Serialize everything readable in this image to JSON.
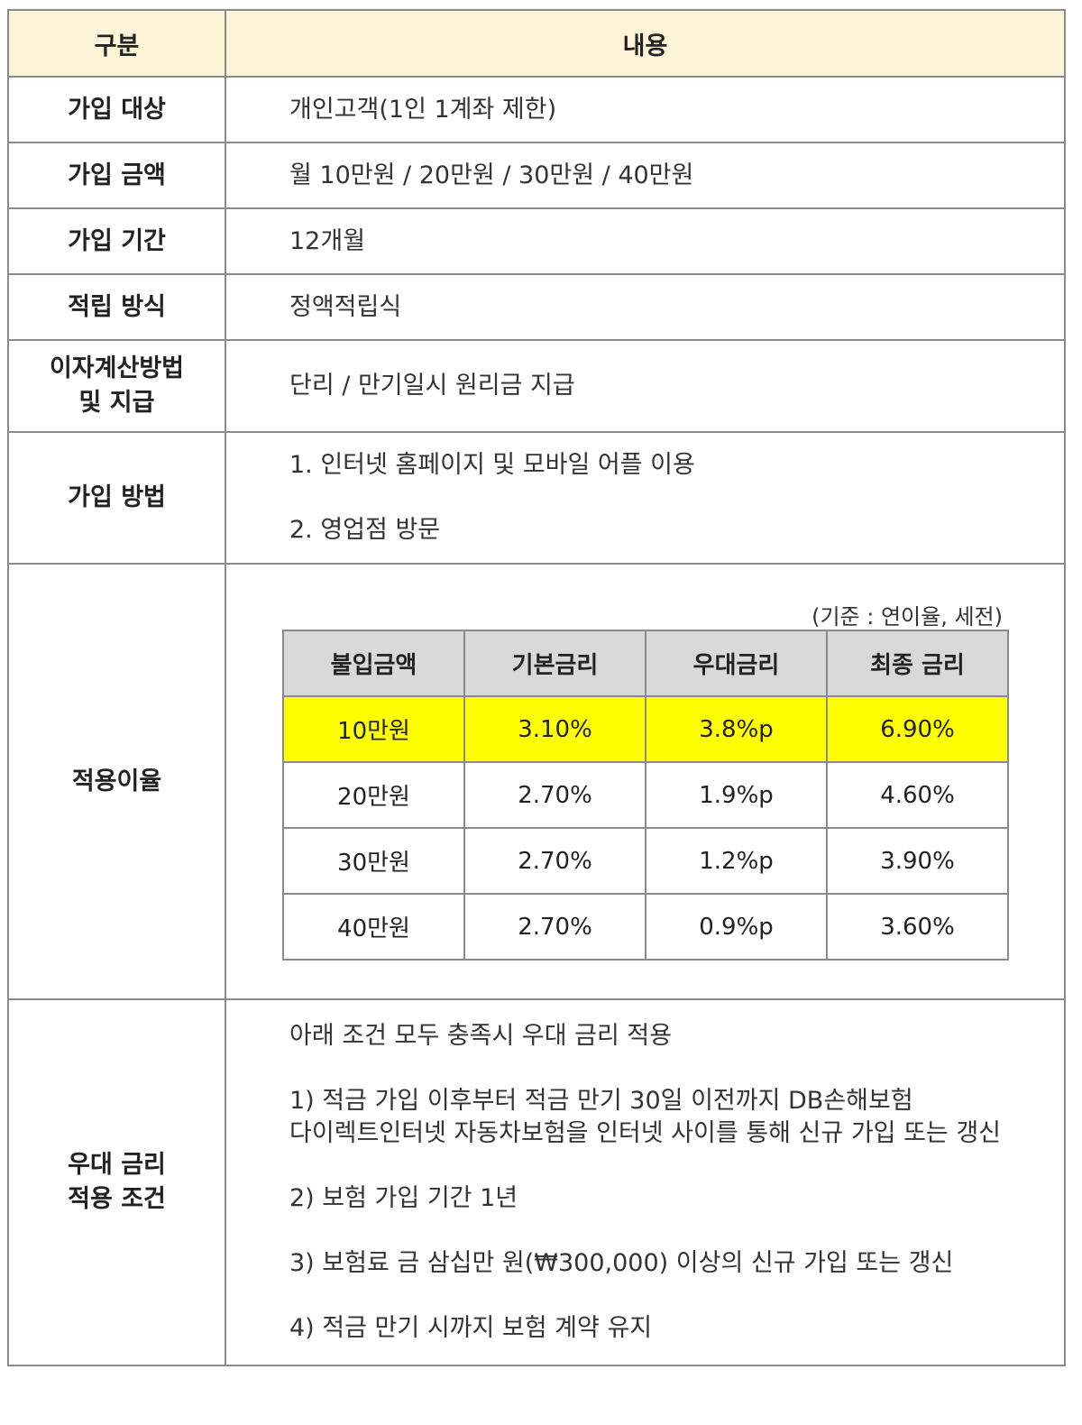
{
  "header": {
    "col1": "구분",
    "col2": "내용"
  },
  "rows": [
    {
      "label": "가입 대상",
      "value": "개인고객(1인 1계좌 제한)"
    },
    {
      "label": "가입 금액",
      "value": "월 10만원 / 20만원 / 30만원 / 40만원"
    },
    {
      "label": "가입 기간",
      "value": "12개월"
    },
    {
      "label": "적립 방식",
      "value": "정액적립식"
    },
    {
      "label_line1": "이자계산방법",
      "label_line2": "및 지급",
      "value": "단리 / 만기일시 원리금 지급"
    },
    {
      "label": "가입 방법",
      "item1": "1.  인터넷 홈페이지 및 모바일 어플 이용",
      "item2": "2.  영업점 방문"
    },
    {
      "label": "적용이율"
    },
    {
      "label_line1": "우대 금리",
      "label_line2": "적용 조건"
    }
  ],
  "rate": {
    "note": "(기준 : 연이율, 세전)",
    "columns": [
      "불입금액",
      "기본금리",
      "우대금리",
      "최종 금리"
    ],
    "rows": [
      [
        "10만원",
        "3.10%",
        "3.8%p",
        "6.90%"
      ],
      [
        "20만원",
        "2.70%",
        "1.9%p",
        "4.60%"
      ],
      [
        "30만원",
        "2.70%",
        "1.2%p",
        "3.90%"
      ],
      [
        "40만원",
        "2.70%",
        "0.9%p",
        "3.60%"
      ]
    ],
    "highlight_color": "#ffff00"
  },
  "conditions": {
    "intro": "아래 조건 모두 충족시 우대 금리 적용",
    "c1_line1": "1)  적금 가입 이후부터 적금 만기 30일 이전까지 DB손해보험",
    "c1_line2": "다이렉트인터넷 자동차보험을 인터넷 사이를 통해 신규 가입 또는 갱신",
    "c2": "2) 보험 가입 기간 1년",
    "c3": "3) 보험료 금 삼십만 원(₩300,000) 이상의 신규 가입 또는 갱신",
    "c4": "4) 적금 만기 시까지 보험 계약 유지"
  },
  "colors": {
    "header_bg": "#fdf3d6",
    "rate_header_bg": "#d9d9d9",
    "border": "#8a8a8a"
  }
}
